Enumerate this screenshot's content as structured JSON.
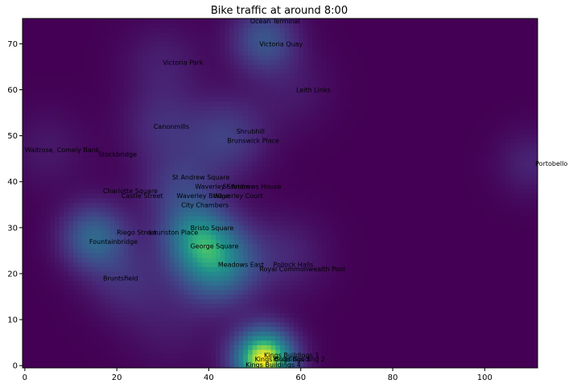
{
  "chart_data": {
    "type": "heatmap",
    "title": "Bike traffic at around 8:00",
    "xlabel": "",
    "ylabel": "",
    "xlim": [
      -0.5,
      111.5
    ],
    "ylim": [
      -0.5,
      75.5
    ],
    "x_ticks": [
      0,
      20,
      40,
      60,
      80,
      100
    ],
    "y_ticks": [
      0,
      10,
      20,
      30,
      40,
      50,
      60,
      70
    ],
    "colormap": "viridis",
    "grid": false,
    "hotspots": [
      {
        "x": 52,
        "y": 1.5,
        "intensity": 1.0,
        "spread": 4.5
      },
      {
        "x": 42,
        "y": 22.5,
        "intensity": 0.55,
        "spread": 6
      },
      {
        "x": 37,
        "y": 28,
        "intensity": 0.4,
        "spread": 5
      },
      {
        "x": 15,
        "y": 28,
        "intensity": 0.4,
        "spread": 5
      },
      {
        "x": 52,
        "y": 71,
        "intensity": 0.32,
        "spread": 5
      },
      {
        "x": 44,
        "y": 50,
        "intensity": 0.22,
        "spread": 6
      },
      {
        "x": 34,
        "y": 38,
        "intensity": 0.22,
        "spread": 6
      },
      {
        "x": 22,
        "y": 19,
        "intensity": 0.15,
        "spread": 6
      },
      {
        "x": 110,
        "y": 44,
        "intensity": 0.12,
        "spread": 5
      },
      {
        "x": 30,
        "y": 52,
        "intensity": 0.15,
        "spread": 6
      },
      {
        "x": 30,
        "y": 66,
        "intensity": 0.1,
        "spread": 6
      },
      {
        "x": 57,
        "y": 24,
        "intensity": 0.12,
        "spread": 6
      },
      {
        "x": 58,
        "y": 60,
        "intensity": 0.08,
        "spread": 6
      },
      {
        "x": 5,
        "y": 47,
        "intensity": 0.08,
        "spread": 6
      },
      {
        "x": 32,
        "y": 9,
        "intensity": 0.08,
        "spread": 7
      }
    ],
    "stations": [
      {
        "name": "Ocean Terminal",
        "x": 49,
        "y": 75
      },
      {
        "name": "Victoria Quay",
        "x": 51,
        "y": 70
      },
      {
        "name": "Victoria Park",
        "x": 30,
        "y": 66
      },
      {
        "name": "Leith Links",
        "x": 59,
        "y": 60
      },
      {
        "name": "Canonmills",
        "x": 28,
        "y": 52
      },
      {
        "name": "Shrubhill",
        "x": 46,
        "y": 51
      },
      {
        "name": "Brunswick Place",
        "x": 44,
        "y": 49
      },
      {
        "name": "Waitrose, Comely Bank",
        "x": 0,
        "y": 47
      },
      {
        "name": "Stockbridge",
        "x": 16,
        "y": 46
      },
      {
        "name": "Portobello",
        "x": 111,
        "y": 44
      },
      {
        "name": "St Andrew Square",
        "x": 32,
        "y": 41
      },
      {
        "name": "Waverley Station",
        "x": 37,
        "y": 39
      },
      {
        "name": "St Andrews House",
        "x": 43,
        "y": 39
      },
      {
        "name": "Charlotte Square",
        "x": 17,
        "y": 38
      },
      {
        "name": "Castle Street",
        "x": 21,
        "y": 37
      },
      {
        "name": "Waverley Bridge",
        "x": 33,
        "y": 37
      },
      {
        "name": "Waverley Court",
        "x": 41,
        "y": 37
      },
      {
        "name": "City Chambers",
        "x": 34,
        "y": 35
      },
      {
        "name": "Bristo Square",
        "x": 36,
        "y": 30
      },
      {
        "name": "Riego Street",
        "x": 20,
        "y": 29
      },
      {
        "name": "Lauriston Place",
        "x": 27,
        "y": 29
      },
      {
        "name": "Fountainbridge",
        "x": 14,
        "y": 27
      },
      {
        "name": "George Square",
        "x": 36,
        "y": 26
      },
      {
        "name": "Meadows East",
        "x": 42,
        "y": 22
      },
      {
        "name": "Pollock Halls",
        "x": 54,
        "y": 22
      },
      {
        "name": "Royal Commonwealth Pool",
        "x": 51,
        "y": 21
      },
      {
        "name": "Bruntsfield",
        "x": 17,
        "y": 19
      },
      {
        "name": "Kings Buildings 1",
        "x": 52,
        "y": 2.3
      },
      {
        "name": "Kings Buildings 3",
        "x": 50,
        "y": 1.4
      },
      {
        "name": "Kings Building 2",
        "x": 54,
        "y": 1.4
      },
      {
        "name": "Kings Buildings 4",
        "x": 48,
        "y": 0.2
      }
    ]
  }
}
